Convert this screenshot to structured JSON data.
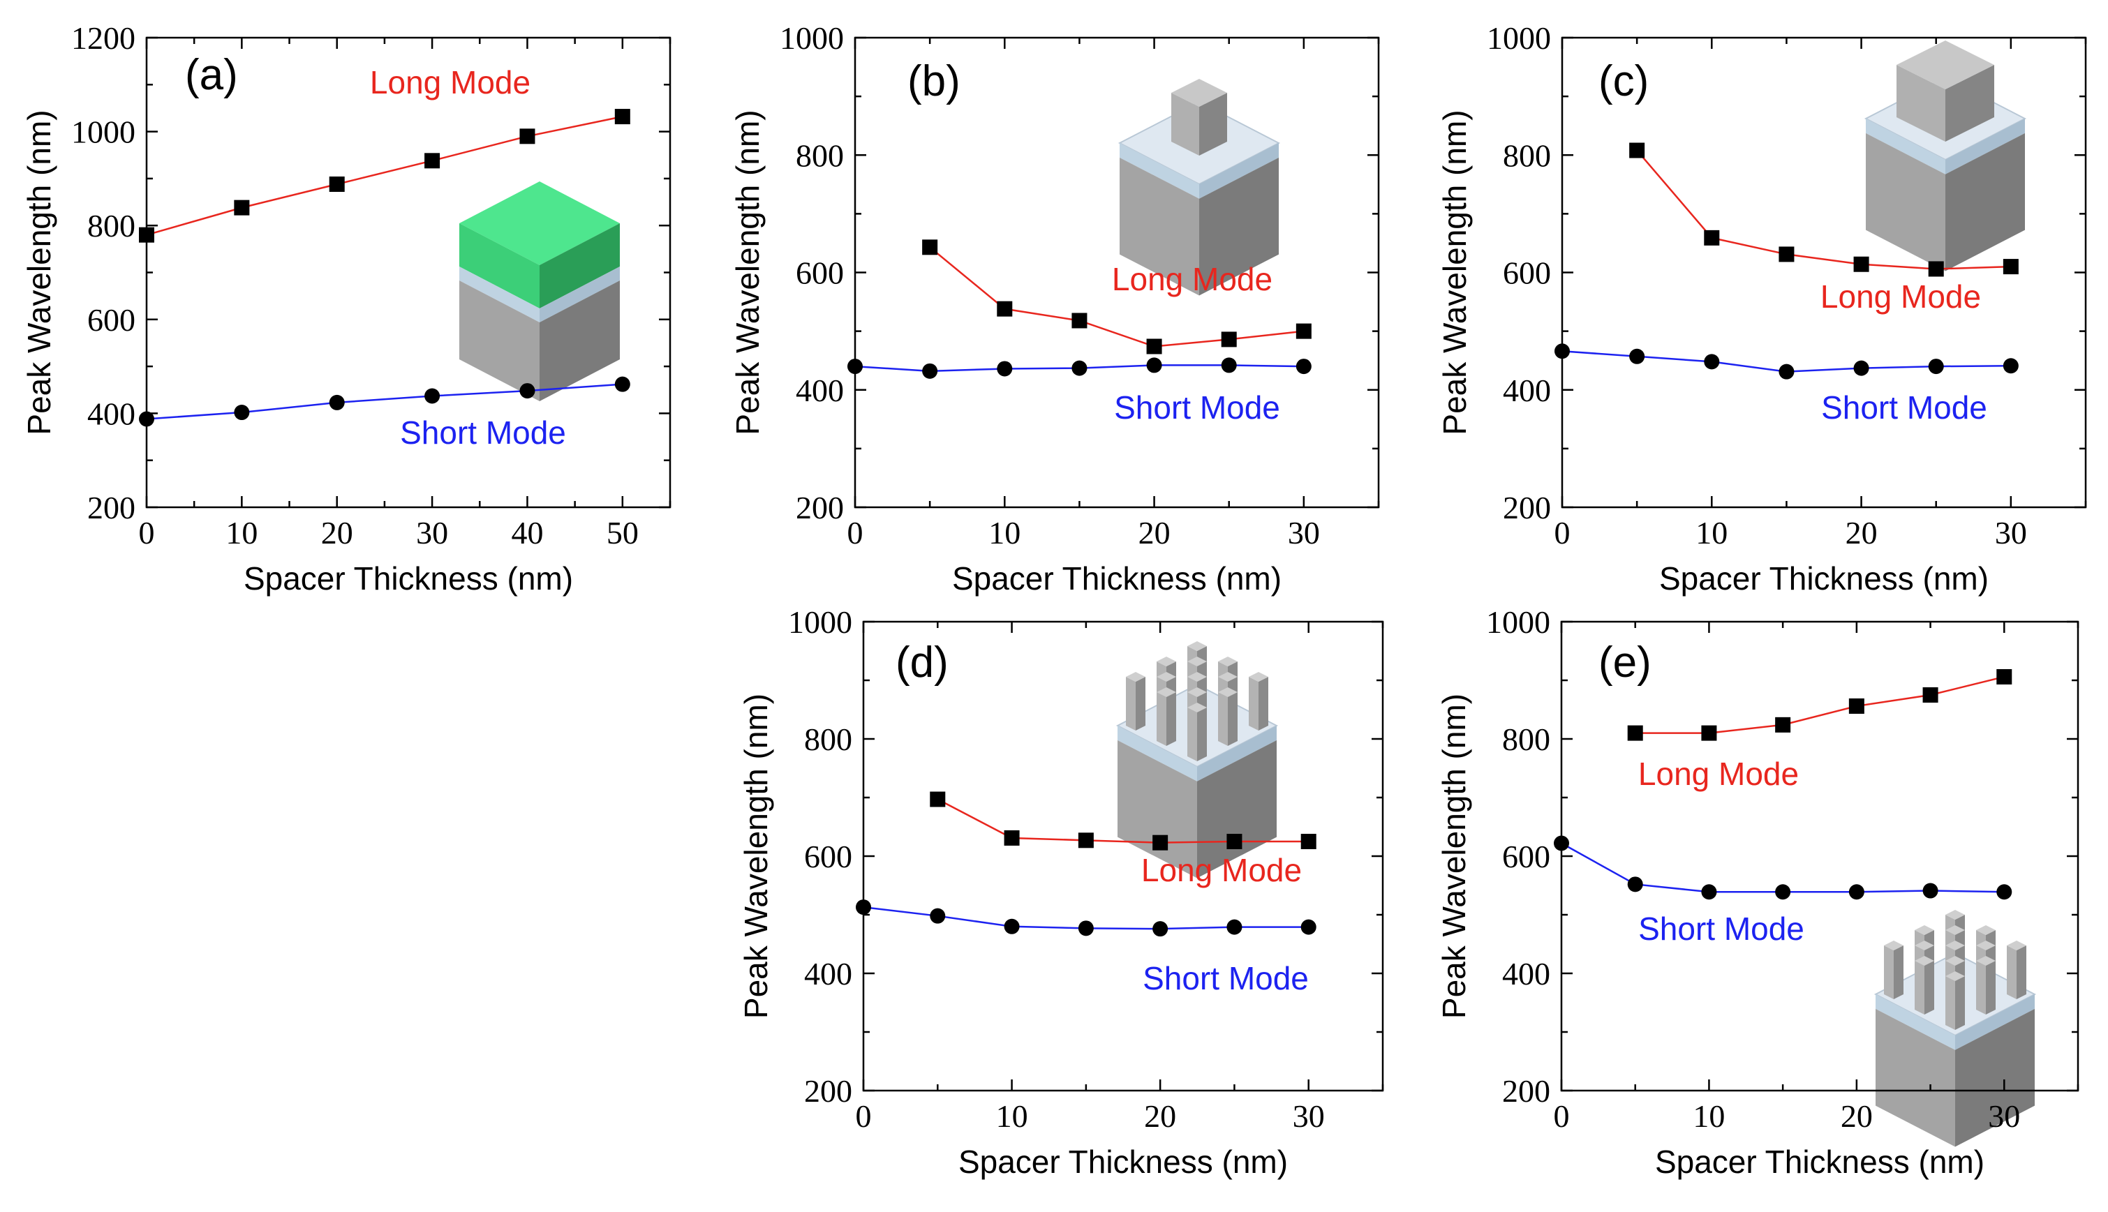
{
  "colors": {
    "long": "#e8261e",
    "short": "#1c22f0",
    "marker": "#000000"
  },
  "chart_data": [
    {
      "panel": "(a)",
      "type": "line",
      "xlabel": "Spacer Thickness (nm)",
      "ylabel": "Peak Wavelength (nm)",
      "xlim": [
        0,
        55
      ],
      "ylim": [
        200,
        1200
      ],
      "xticks": [
        0,
        10,
        20,
        30,
        40,
        50
      ],
      "yticks": [
        200,
        400,
        600,
        800,
        1000,
        1200
      ],
      "series": [
        {
          "name": "Long Mode",
          "marker": "square",
          "x": [
            0,
            10,
            20,
            30,
            40,
            50
          ],
          "values": [
            780,
            838,
            888,
            938,
            990,
            1032
          ]
        },
        {
          "name": "Short Mode",
          "marker": "circle",
          "x": [
            0,
            10,
            20,
            30,
            40,
            50
          ],
          "values": [
            388,
            402,
            423,
            437,
            448,
            462
          ]
        }
      ],
      "inset": "green-cube"
    },
    {
      "panel": "(b)",
      "type": "line",
      "xlabel": "Spacer Thickness (nm)",
      "ylabel": "Peak Wavelength (nm)",
      "xlim": [
        0,
        35
      ],
      "ylim": [
        200,
        1000
      ],
      "xticks": [
        0,
        10,
        20,
        30
      ],
      "yticks": [
        200,
        400,
        600,
        800,
        1000
      ],
      "series": [
        {
          "name": "Long Mode",
          "marker": "square",
          "x": [
            5,
            10,
            15,
            20,
            25,
            30
          ],
          "values": [
            643,
            538,
            518,
            474,
            486,
            500
          ]
        },
        {
          "name": "Short Mode",
          "marker": "circle",
          "x": [
            0,
            5,
            10,
            15,
            20,
            25,
            30
          ],
          "values": [
            440,
            432,
            436,
            437,
            442,
            442,
            440
          ]
        }
      ],
      "inset": "small-cube"
    },
    {
      "panel": "(c)",
      "type": "line",
      "xlabel": "Spacer Thickness (nm)",
      "ylabel": "Peak Wavelength (nm)",
      "xlim": [
        0,
        35
      ],
      "ylim": [
        200,
        1000
      ],
      "xticks": [
        0,
        10,
        20,
        30
      ],
      "yticks": [
        200,
        400,
        600,
        800,
        1000
      ],
      "series": [
        {
          "name": "Long Mode",
          "marker": "square",
          "x": [
            5,
            10,
            15,
            20,
            25,
            30
          ],
          "values": [
            808,
            659,
            631,
            614,
            606,
            610
          ]
        },
        {
          "name": "Short Mode",
          "marker": "circle",
          "x": [
            0,
            5,
            10,
            15,
            20,
            25,
            30
          ],
          "values": [
            466,
            457,
            448,
            431,
            437,
            440,
            441
          ]
        }
      ],
      "inset": "large-cube"
    },
    {
      "panel": "(d)",
      "type": "line",
      "xlabel": "Spacer Thickness (nm)",
      "ylabel": "Peak Wavelength (nm)",
      "xlim": [
        0,
        35
      ],
      "ylim": [
        200,
        1000
      ],
      "xticks": [
        0,
        10,
        20,
        30
      ],
      "yticks": [
        200,
        400,
        600,
        800,
        1000
      ],
      "series": [
        {
          "name": "Long Mode",
          "marker": "square",
          "x": [
            5,
            10,
            15,
            20,
            25,
            30
          ],
          "values": [
            697,
            631,
            627,
            623,
            625,
            625
          ]
        },
        {
          "name": "Short Mode",
          "marker": "circle",
          "x": [
            0,
            5,
            10,
            15,
            20,
            25,
            30
          ],
          "values": [
            513,
            498,
            480,
            477,
            476,
            479,
            479
          ]
        }
      ],
      "inset": "pillar-array"
    },
    {
      "panel": "(e)",
      "type": "line",
      "xlabel": "Spacer Thickness (nm)",
      "ylabel": "Peak Wavelength (nm)",
      "xlim": [
        0,
        35
      ],
      "ylim": [
        200,
        1000
      ],
      "xticks": [
        0,
        10,
        20,
        30
      ],
      "yticks": [
        200,
        400,
        600,
        800,
        1000
      ],
      "series": [
        {
          "name": "Long Mode",
          "marker": "square",
          "x": [
            5,
            10,
            15,
            20,
            25,
            30
          ],
          "values": [
            810,
            810,
            824,
            856,
            875,
            906
          ]
        },
        {
          "name": "Short Mode",
          "marker": "circle",
          "x": [
            0,
            5,
            10,
            15,
            20,
            25,
            30
          ],
          "values": [
            622,
            552,
            539,
            539,
            539,
            541,
            539
          ]
        }
      ],
      "inset": "pillar-array"
    }
  ]
}
